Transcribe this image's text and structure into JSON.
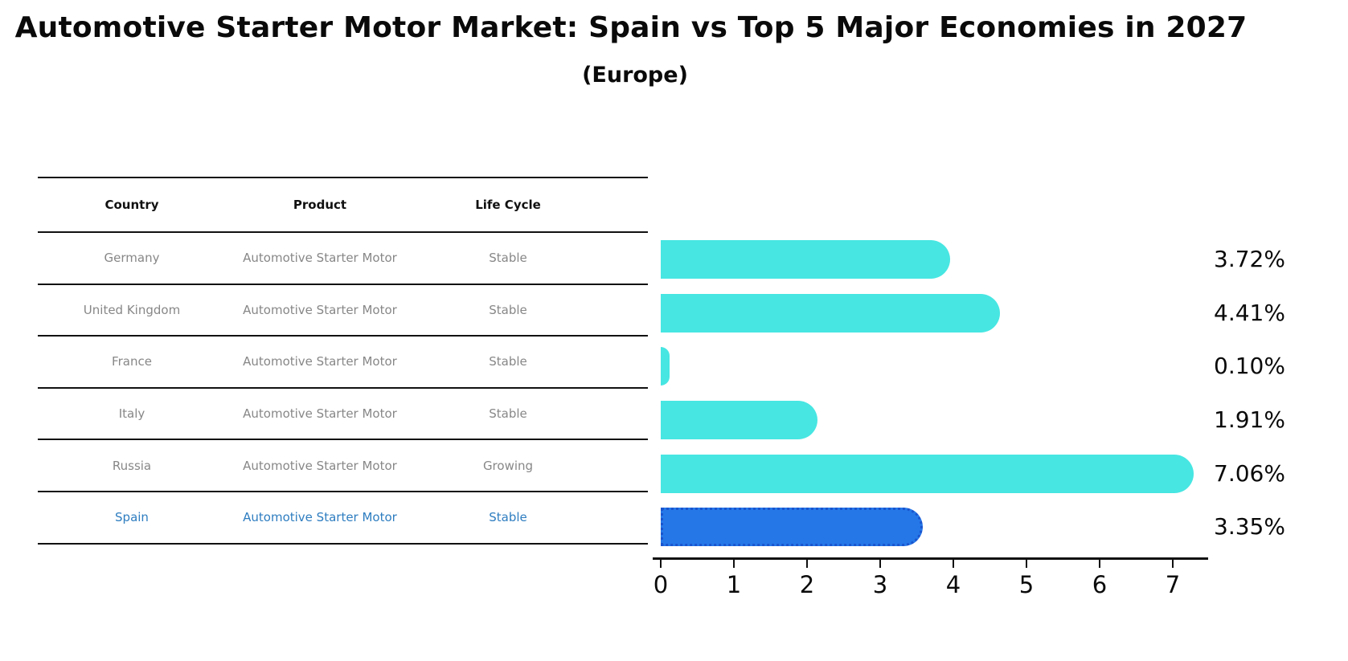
{
  "header": {
    "title": "Automotive Starter Motor Market: Spain vs Top 5 Major Economies in 2027",
    "subtitle": "(Europe)"
  },
  "table": {
    "columns": [
      "Country",
      "Product",
      "Life Cycle"
    ],
    "rows": [
      {
        "country": "Germany",
        "product": "Automotive Starter Motor",
        "life_cycle": "Stable",
        "highlighted": false
      },
      {
        "country": "United Kingdom",
        "product": "Automotive Starter Motor",
        "life_cycle": "Stable",
        "highlighted": false
      },
      {
        "country": "France",
        "product": "Automotive Starter Motor",
        "life_cycle": "Stable",
        "highlighted": false
      },
      {
        "country": "Italy",
        "product": "Automotive Starter Motor",
        "life_cycle": "Stable",
        "highlighted": false
      },
      {
        "country": "Russia",
        "product": "Automotive Starter Motor",
        "life_cycle": "Growing",
        "highlighted": false
      },
      {
        "country": "Spain",
        "product": "Automotive Starter Motor",
        "life_cycle": "Stable",
        "highlighted": true
      }
    ]
  },
  "chart_data": {
    "type": "bar",
    "orientation": "horizontal",
    "title": "Automotive Starter Motor Market: Spain vs Top 5 Major Economies in 2027",
    "subtitle": "(Europe)",
    "categories": [
      "Germany",
      "United Kingdom",
      "France",
      "Italy",
      "Russia",
      "Spain"
    ],
    "values": [
      3.72,
      4.41,
      0.1,
      1.91,
      7.06,
      3.35
    ],
    "value_labels": [
      "3.72%",
      "4.41%",
      "0.10%",
      "1.91%",
      "7.06%",
      "3.35%"
    ],
    "units": "percent",
    "xlim": [
      0,
      7.5
    ],
    "x_ticks": [
      "0",
      "1",
      "2",
      "3",
      "4",
      "5",
      "6",
      "7"
    ],
    "highlight_index": 5,
    "grid": false,
    "legend": "none"
  },
  "colors": {
    "bar": "#47E6E2",
    "highlight_bar": "#2577E8",
    "highlight_edge": "#1A55CE",
    "highlight_text": "#2E7DC0",
    "row_text": "#878787",
    "axis": "#111111"
  }
}
